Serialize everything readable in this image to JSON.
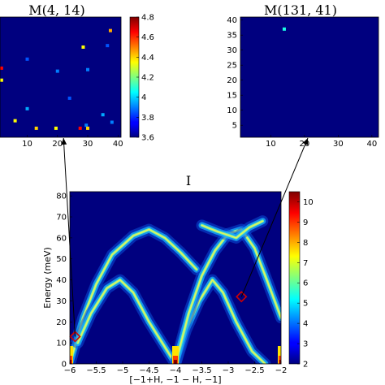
{
  "chart_data": [
    {
      "type": "heatmap",
      "title": "M(4, 14)",
      "x_ticks": [
        10,
        20,
        30,
        40
      ],
      "xlim": [
        1,
        41
      ],
      "ylim": [
        1,
        41
      ],
      "background_value": 3.6,
      "colorbar": {
        "min": 3.6,
        "max": 4.8,
        "ticks": [
          "4.8",
          "4.6",
          "4.4",
          "4.2",
          "4",
          "3.8",
          "3.6"
        ]
      },
      "cells": [
        {
          "x": 37.5,
          "y": 36.5,
          "v": 4.45
        },
        {
          "x": 28.5,
          "y": 31.0,
          "v": 4.35
        },
        {
          "x": 36.5,
          "y": 31.5,
          "v": 3.85
        },
        {
          "x": 10.0,
          "y": 27.0,
          "v": 3.85
        },
        {
          "x": 1.5,
          "y": 24.0,
          "v": 4.65
        },
        {
          "x": 20.0,
          "y": 23.0,
          "v": 3.9
        },
        {
          "x": 30.0,
          "y": 23.5,
          "v": 3.9
        },
        {
          "x": 1.5,
          "y": 20.0,
          "v": 4.35
        },
        {
          "x": 24.0,
          "y": 14.0,
          "v": 3.85
        },
        {
          "x": 10.0,
          "y": 10.5,
          "v": 3.95
        },
        {
          "x": 35.0,
          "y": 8.5,
          "v": 3.95
        },
        {
          "x": 6.0,
          "y": 6.5,
          "v": 4.35
        },
        {
          "x": 29.5,
          "y": 5.0,
          "v": 3.9
        },
        {
          "x": 13.0,
          "y": 4.0,
          "v": 4.4
        },
        {
          "x": 19.5,
          "y": 4.0,
          "v": 4.35
        },
        {
          "x": 27.5,
          "y": 4.0,
          "v": 4.65
        },
        {
          "x": 30.0,
          "y": 4.0,
          "v": 4.4
        },
        {
          "x": 38.0,
          "y": 6.0,
          "v": 3.9
        }
      ]
    },
    {
      "type": "heatmap",
      "title": "M(131, 41)",
      "x_ticks": [
        10,
        20,
        30,
        40
      ],
      "y_ticks": [
        5,
        10,
        15,
        20,
        25,
        30,
        35,
        40
      ],
      "xlim": [
        1,
        41
      ],
      "ylim": [
        1,
        41
      ],
      "background_value": 0,
      "cells": [
        {
          "x": 14.0,
          "y": 37.0,
          "v": 0.4
        }
      ]
    },
    {
      "type": "heatmap",
      "title": "I",
      "xlabel": "[−1+H, −1 − H, −1]",
      "ylabel": "Energy (meV)",
      "xlim": [
        -6,
        -2
      ],
      "ylim": [
        0,
        82
      ],
      "x_ticks": [
        "−6",
        "−5.5",
        "−5",
        "−4.5",
        "−4",
        "−3.5",
        "−3",
        "−2.5",
        "−2"
      ],
      "y_ticks": [
        "0",
        "10",
        "20",
        "30",
        "40",
        "50",
        "60",
        "70",
        "80"
      ],
      "colorbar": {
        "min": 2,
        "max": 10.5,
        "ticks": [
          "10",
          "9",
          "8",
          "7",
          "6",
          "5",
          "4",
          "3",
          "2"
        ]
      },
      "dispersion_branches": [
        {
          "points": [
            [
              -6.0,
              0
            ],
            [
              -5.75,
              22
            ],
            [
              -5.5,
              38
            ],
            [
              -5.2,
              52
            ],
            [
              -4.8,
              61
            ],
            [
              -4.5,
              64
            ],
            [
              -4.2,
              60
            ],
            [
              -3.9,
              53
            ],
            [
              -3.6,
              45
            ]
          ]
        },
        {
          "points": [
            [
              -5.85,
              10
            ],
            [
              -5.6,
              24
            ],
            [
              -5.3,
              36
            ],
            [
              -5.05,
              40
            ],
            [
              -4.8,
              34
            ],
            [
              -4.5,
              20
            ],
            [
              -4.2,
              8
            ],
            [
              -4.0,
              0
            ]
          ]
        },
        {
          "points": [
            [
              -4.0,
              0
            ],
            [
              -3.8,
              16
            ],
            [
              -3.55,
              30
            ],
            [
              -3.3,
              40
            ],
            [
              -3.1,
              34
            ],
            [
              -2.85,
              20
            ],
            [
              -2.55,
              6
            ],
            [
              -2.3,
              0
            ]
          ]
        },
        {
          "points": [
            [
              -4.0,
              0
            ],
            [
              -3.75,
              24
            ],
            [
              -3.5,
              42
            ],
            [
              -3.25,
              54
            ],
            [
              -3.0,
              62
            ],
            [
              -2.75,
              64
            ],
            [
              -2.5,
              55
            ],
            [
              -2.3,
              42
            ],
            [
              -2.0,
              22
            ]
          ]
        },
        {
          "points": [
            [
              -3.5,
              66
            ],
            [
              -3.2,
              63
            ],
            [
              -2.85,
              60
            ],
            [
              -2.6,
              65
            ],
            [
              -2.35,
              68
            ]
          ]
        }
      ],
      "hotspots": [
        [
          -6.0,
          0
        ],
        [
          -4.0,
          0
        ],
        [
          -2.0,
          0
        ]
      ],
      "markers": [
        {
          "shape": "diamond",
          "color": "#d00000",
          "x": -5.9,
          "y": 13
        },
        {
          "shape": "diamond",
          "color": "#d00000",
          "x": -2.75,
          "y": 32
        }
      ],
      "arrows": [
        {
          "from_marker": 0,
          "to_panel": 0,
          "x_target": 22,
          "y_target": 1
        },
        {
          "from_marker": 1,
          "to_panel": 1,
          "x_target": 21,
          "y_target": 1
        }
      ]
    }
  ]
}
